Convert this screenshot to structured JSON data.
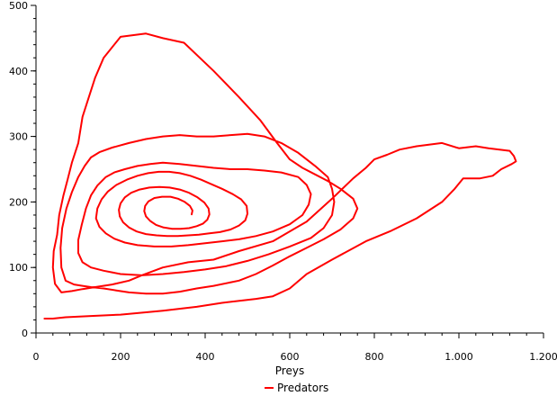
{
  "chart_data": {
    "type": "line",
    "title": "",
    "xlabel": "Preys",
    "ylabel": "",
    "xlim": [
      0,
      1200
    ],
    "ylim": [
      0,
      500
    ],
    "x_ticks": [
      0,
      200,
      400,
      600,
      800,
      1000,
      1200
    ],
    "x_tick_labels": [
      "0",
      "200",
      "400",
      "600",
      "800",
      "1.000",
      "1.200"
    ],
    "y_ticks": [
      0,
      100,
      200,
      300,
      400,
      500
    ],
    "y_tick_labels": [
      "0",
      "100",
      "200",
      "300",
      "400",
      "500"
    ],
    "grid": false,
    "legend": "bottom-center",
    "series": [
      {
        "name": "Predators",
        "color": "#ff0000",
        "points": [
          [
            20,
            22
          ],
          [
            40,
            22
          ],
          [
            70,
            24
          ],
          [
            130,
            26
          ],
          [
            200,
            28
          ],
          [
            300,
            34
          ],
          [
            380,
            40
          ],
          [
            440,
            46
          ],
          [
            520,
            52
          ],
          [
            560,
            56
          ],
          [
            600,
            68
          ],
          [
            640,
            90
          ],
          [
            700,
            112
          ],
          [
            780,
            140
          ],
          [
            840,
            156
          ],
          [
            900,
            175
          ],
          [
            960,
            200
          ],
          [
            990,
            220
          ],
          [
            1010,
            236
          ],
          [
            1050,
            236
          ],
          [
            1080,
            240
          ],
          [
            1100,
            250
          ],
          [
            1125,
            258
          ],
          [
            1135,
            262
          ],
          [
            1130,
            270
          ],
          [
            1120,
            278
          ],
          [
            1070,
            282
          ],
          [
            1040,
            285
          ],
          [
            1000,
            282
          ],
          [
            960,
            290
          ],
          [
            900,
            285
          ],
          [
            860,
            280
          ],
          [
            830,
            272
          ],
          [
            800,
            265
          ],
          [
            780,
            252
          ],
          [
            750,
            236
          ],
          [
            700,
            205
          ],
          [
            640,
            170
          ],
          [
            560,
            140
          ],
          [
            480,
            125
          ],
          [
            420,
            112
          ],
          [
            360,
            108
          ],
          [
            300,
            100
          ],
          [
            250,
            88
          ],
          [
            220,
            80
          ],
          [
            180,
            74
          ],
          [
            140,
            70
          ],
          [
            110,
            67
          ],
          [
            85,
            64
          ],
          [
            60,
            62
          ],
          [
            45,
            75
          ],
          [
            40,
            100
          ],
          [
            42,
            125
          ],
          [
            50,
            150
          ],
          [
            55,
            180
          ],
          [
            65,
            210
          ],
          [
            75,
            235
          ],
          [
            85,
            260
          ],
          [
            100,
            290
          ],
          [
            110,
            330
          ],
          [
            120,
            350
          ],
          [
            140,
            390
          ],
          [
            160,
            420
          ],
          [
            200,
            452
          ],
          [
            260,
            457
          ],
          [
            300,
            450
          ],
          [
            350,
            443
          ],
          [
            420,
            400
          ],
          [
            480,
            360
          ],
          [
            530,
            325
          ],
          [
            570,
            290
          ],
          [
            600,
            265
          ],
          [
            630,
            252
          ],
          [
            660,
            242
          ],
          [
            690,
            232
          ],
          [
            720,
            220
          ],
          [
            750,
            205
          ],
          [
            760,
            190
          ],
          [
            750,
            175
          ],
          [
            720,
            158
          ],
          [
            680,
            143
          ],
          [
            640,
            130
          ],
          [
            600,
            117
          ],
          [
            560,
            103
          ],
          [
            520,
            90
          ],
          [
            480,
            80
          ],
          [
            420,
            72
          ],
          [
            380,
            68
          ],
          [
            340,
            63
          ],
          [
            300,
            60
          ],
          [
            260,
            60
          ],
          [
            220,
            62
          ],
          [
            190,
            65
          ],
          [
            160,
            68
          ],
          [
            130,
            70
          ],
          [
            110,
            72
          ],
          [
            90,
            74
          ],
          [
            70,
            80
          ],
          [
            60,
            100
          ],
          [
            58,
            130
          ],
          [
            62,
            160
          ],
          [
            72,
            190
          ],
          [
            85,
            215
          ],
          [
            100,
            238
          ],
          [
            115,
            255
          ],
          [
            130,
            268
          ],
          [
            150,
            276
          ],
          [
            180,
            283
          ],
          [
            220,
            290
          ],
          [
            260,
            296
          ],
          [
            300,
            300
          ],
          [
            340,
            302
          ],
          [
            380,
            300
          ],
          [
            420,
            300
          ],
          [
            460,
            302
          ],
          [
            500,
            304
          ],
          [
            540,
            300
          ],
          [
            580,
            290
          ],
          [
            620,
            275
          ],
          [
            660,
            255
          ],
          [
            690,
            238
          ],
          [
            700,
            220
          ],
          [
            705,
            200
          ],
          [
            700,
            180
          ],
          [
            680,
            160
          ],
          [
            650,
            145
          ],
          [
            600,
            132
          ],
          [
            550,
            120
          ],
          [
            500,
            110
          ],
          [
            450,
            102
          ],
          [
            400,
            97
          ],
          [
            350,
            93
          ],
          [
            300,
            90
          ],
          [
            250,
            88
          ],
          [
            200,
            90
          ],
          [
            160,
            95
          ],
          [
            130,
            100
          ],
          [
            110,
            108
          ],
          [
            100,
            122
          ],
          [
            100,
            142
          ],
          [
            108,
            165
          ],
          [
            118,
            190
          ],
          [
            130,
            210
          ],
          [
            145,
            225
          ],
          [
            165,
            238
          ],
          [
            185,
            245
          ],
          [
            210,
            250
          ],
          [
            240,
            255
          ],
          [
            270,
            258
          ],
          [
            300,
            260
          ],
          [
            340,
            258
          ],
          [
            380,
            255
          ],
          [
            420,
            252
          ],
          [
            460,
            250
          ],
          [
            500,
            250
          ],
          [
            540,
            248
          ],
          [
            580,
            245
          ],
          [
            620,
            238
          ],
          [
            640,
            226
          ],
          [
            650,
            212
          ],
          [
            645,
            196
          ],
          [
            630,
            180
          ],
          [
            600,
            166
          ],
          [
            560,
            155
          ],
          [
            520,
            148
          ],
          [
            480,
            143
          ],
          [
            440,
            140
          ],
          [
            400,
            137
          ],
          [
            360,
            134
          ],
          [
            320,
            132
          ],
          [
            280,
            132
          ],
          [
            240,
            134
          ],
          [
            210,
            138
          ],
          [
            185,
            144
          ],
          [
            165,
            152
          ],
          [
            150,
            162
          ],
          [
            142,
            175
          ],
          [
            145,
            190
          ],
          [
            155,
            204
          ],
          [
            170,
            216
          ],
          [
            190,
            226
          ],
          [
            215,
            234
          ],
          [
            240,
            240
          ],
          [
            265,
            244
          ],
          [
            290,
            246
          ],
          [
            315,
            246
          ],
          [
            340,
            244
          ],
          [
            365,
            240
          ],
          [
            390,
            234
          ],
          [
            415,
            227
          ],
          [
            440,
            220
          ],
          [
            465,
            212
          ],
          [
            485,
            204
          ],
          [
            498,
            194
          ],
          [
            500,
            182
          ],
          [
            495,
            172
          ],
          [
            480,
            164
          ],
          [
            460,
            158
          ],
          [
            435,
            154
          ],
          [
            410,
            152
          ],
          [
            385,
            150
          ],
          [
            360,
            149
          ],
          [
            335,
            148
          ],
          [
            310,
            148
          ],
          [
            285,
            149
          ],
          [
            260,
            151
          ],
          [
            238,
            155
          ],
          [
            220,
            161
          ],
          [
            206,
            169
          ],
          [
            198,
            178
          ],
          [
            196,
            188
          ],
          [
            200,
            198
          ],
          [
            210,
            207
          ],
          [
            225,
            214
          ],
          [
            245,
            219
          ],
          [
            268,
            222
          ],
          [
            292,
            223
          ],
          [
            316,
            222
          ],
          [
            340,
            219
          ],
          [
            362,
            214
          ],
          [
            382,
            207
          ],
          [
            398,
            199
          ],
          [
            408,
            190
          ],
          [
            410,
            181
          ],
          [
            405,
            173
          ],
          [
            395,
            167
          ],
          [
            380,
            163
          ],
          [
            362,
            160
          ],
          [
            342,
            159
          ],
          [
            322,
            159
          ],
          [
            302,
            161
          ],
          [
            284,
            165
          ],
          [
            270,
            171
          ],
          [
            260,
            178
          ],
          [
            256,
            186
          ],
          [
            258,
            194
          ],
          [
            266,
            201
          ],
          [
            280,
            206
          ],
          [
            298,
            208
          ],
          [
            318,
            208
          ],
          [
            336,
            205
          ],
          [
            352,
            200
          ],
          [
            364,
            194
          ],
          [
            370,
            187
          ],
          [
            368,
            181
          ]
        ]
      }
    ]
  }
}
